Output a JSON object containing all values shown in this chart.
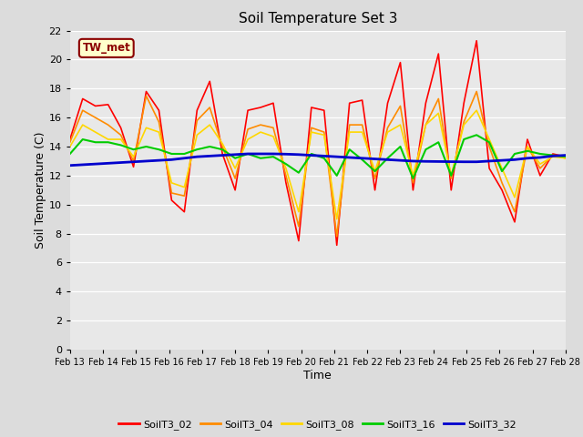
{
  "title": "Soil Temperature Set 3",
  "xlabel": "Time",
  "ylabel": "Soil Temperature (C)",
  "ylim": [
    0,
    22
  ],
  "yticks": [
    0,
    2,
    4,
    6,
    8,
    10,
    12,
    14,
    16,
    18,
    20,
    22
  ],
  "annotation_text": "TW_met",
  "annotation_color": "#8B0000",
  "annotation_bg": "#FFFFCC",
  "annotation_border": "#8B0000",
  "fig_bg": "#DCDCDC",
  "plot_bg": "#E8E8E8",
  "grid_color": "#FFFFFF",
  "series_colors": {
    "SoilT3_02": "#FF0000",
    "SoilT3_04": "#FF8C00",
    "SoilT3_08": "#FFD700",
    "SoilT3_16": "#00CC00",
    "SoilT3_32": "#0000CD"
  },
  "series_lw": {
    "SoilT3_02": 1.2,
    "SoilT3_04": 1.2,
    "SoilT3_08": 1.2,
    "SoilT3_16": 1.5,
    "SoilT3_32": 2.0
  },
  "x_labels": [
    "Feb 13",
    "Feb 14",
    "Feb 15",
    "Feb 16",
    "Feb 17",
    "Feb 18",
    "Feb 19",
    "Feb 20",
    "Feb 21",
    "Feb 22",
    "Feb 23",
    "Feb 24",
    "Feb 25",
    "Feb 26",
    "Feb 27",
    "Feb 28"
  ],
  "SoilT3_02": [
    14.5,
    17.3,
    16.8,
    16.9,
    15.3,
    12.6,
    17.8,
    16.5,
    10.3,
    9.5,
    16.5,
    18.5,
    13.5,
    11.0,
    16.5,
    16.7,
    17.0,
    11.5,
    7.5,
    16.7,
    16.5,
    7.2,
    17.0,
    17.2,
    11.0,
    17.0,
    19.8,
    11.0,
    17.0,
    20.4,
    11.0,
    17.0,
    21.3,
    12.5,
    11.0,
    8.8,
    14.5,
    12.0,
    13.5,
    13.3
  ],
  "SoilT3_04": [
    14.3,
    16.5,
    16.0,
    15.5,
    14.8,
    13.0,
    17.5,
    15.7,
    10.8,
    10.6,
    15.8,
    16.7,
    14.0,
    11.8,
    15.2,
    15.5,
    15.3,
    12.0,
    8.5,
    15.3,
    15.0,
    7.8,
    15.5,
    15.5,
    11.8,
    15.3,
    16.8,
    11.5,
    15.5,
    17.3,
    11.8,
    15.7,
    17.8,
    14.0,
    11.5,
    9.5,
    14.0,
    12.5,
    13.4,
    13.2
  ],
  "SoilT3_08": [
    14.0,
    15.5,
    15.0,
    14.5,
    14.5,
    13.3,
    15.3,
    15.0,
    11.5,
    11.2,
    14.8,
    15.5,
    14.2,
    12.5,
    14.5,
    15.0,
    14.7,
    12.5,
    9.5,
    15.0,
    14.8,
    9.0,
    15.0,
    15.0,
    12.3,
    15.0,
    15.5,
    12.0,
    15.5,
    16.3,
    12.0,
    15.5,
    16.5,
    14.5,
    12.5,
    10.5,
    14.0,
    12.8,
    13.3,
    13.2
  ],
  "SoilT3_16": [
    13.5,
    14.5,
    14.3,
    14.3,
    14.1,
    13.8,
    14.0,
    13.8,
    13.5,
    13.5,
    13.8,
    14.0,
    13.8,
    13.2,
    13.5,
    13.2,
    13.3,
    12.8,
    12.2,
    13.5,
    13.2,
    12.0,
    13.8,
    13.1,
    12.3,
    13.2,
    14.0,
    11.8,
    13.8,
    14.3,
    12.0,
    14.5,
    14.8,
    14.3,
    12.3,
    13.5,
    13.7,
    13.5,
    13.4,
    13.3
  ],
  "SoilT3_32": [
    12.7,
    12.75,
    12.8,
    12.85,
    12.9,
    12.95,
    13.0,
    13.05,
    13.1,
    13.2,
    13.3,
    13.35,
    13.4,
    13.45,
    13.5,
    13.5,
    13.5,
    13.48,
    13.45,
    13.4,
    13.35,
    13.3,
    13.25,
    13.2,
    13.15,
    13.1,
    13.05,
    13.0,
    12.98,
    12.97,
    12.96,
    12.95,
    12.95,
    13.0,
    13.05,
    13.1,
    13.2,
    13.25,
    13.35,
    13.4
  ]
}
